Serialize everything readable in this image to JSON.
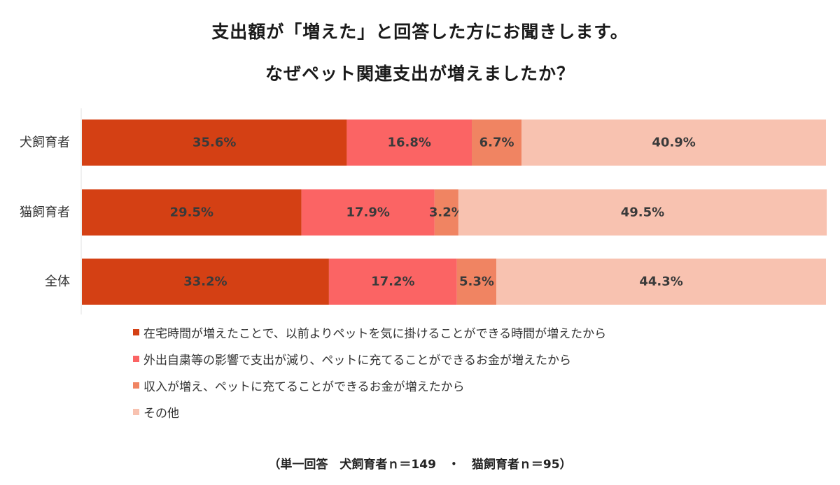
{
  "chart_data": {
    "type": "bar",
    "orientation": "horizontal",
    "stacked": true,
    "title": "支出額が「増えた」と回答した方にお聞きします。",
    "subtitle": "なぜペット関連支出が増えましたか？",
    "categories": [
      "犬飼育者",
      "猫飼育者",
      "全体"
    ],
    "series": [
      {
        "name": "在宅時間が増えたことで、以前よりペットを気に掛けることができる時間が増えたから",
        "color": "#d44014",
        "values": [
          35.6,
          29.5,
          33.2
        ],
        "labels": [
          "35.6%",
          "29.5%",
          "33.2%"
        ]
      },
      {
        "name": "外出自粛等の影響で支出が減り、ペットに充てることができるお金が増えたから",
        "color": "#fb6464",
        "values": [
          16.8,
          17.9,
          17.2
        ],
        "labels": [
          "16.8%",
          "17.9%",
          "17.2%"
        ]
      },
      {
        "name": "収入が増え、ペットに充てることができるお金が増えたから",
        "color": "#f08462",
        "values": [
          6.7,
          3.2,
          5.3
        ],
        "labels": [
          "6.7%",
          "3.2%",
          "5.3%"
        ]
      },
      {
        "name": "その他",
        "color": "#f8c2b0",
        "values": [
          40.9,
          49.5,
          44.3
        ],
        "labels": [
          "40.9%",
          "49.5%",
          "44.3%"
        ]
      }
    ],
    "xlim": [
      0,
      100
    ],
    "grid": false,
    "legend_position": "bottom-left",
    "footnote": "（単一回答　犬飼育者ｎ＝149　・　猫飼育者ｎ＝95）"
  }
}
